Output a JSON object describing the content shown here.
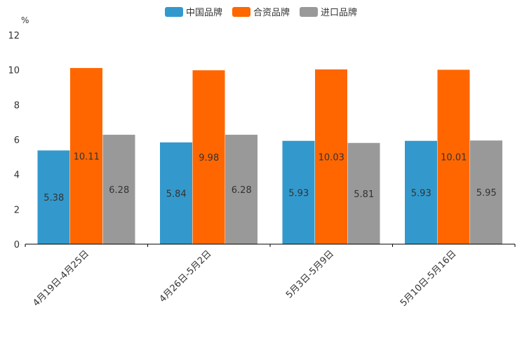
{
  "chart_data": {
    "type": "bar",
    "unit": "%",
    "categories": [
      "4月19日-4月25日",
      "4月26日-5月2日",
      "5月3日-5月9日",
      "5月10日-5月16日"
    ],
    "series": [
      {
        "name": "中国品牌",
        "color": "#3399cc",
        "values": [
          5.38,
          5.84,
          5.93,
          5.93
        ]
      },
      {
        "name": "合资品牌",
        "color": "#ff6600",
        "values": [
          10.11,
          9.98,
          10.03,
          10.01
        ]
      },
      {
        "name": "进口品牌",
        "color": "#999999",
        "values": [
          6.28,
          6.28,
          5.81,
          5.95
        ]
      }
    ],
    "ylim": [
      0,
      12
    ],
    "yticks": [
      0,
      2,
      4,
      6,
      8,
      10,
      12
    ],
    "legend_position": "top-center"
  }
}
